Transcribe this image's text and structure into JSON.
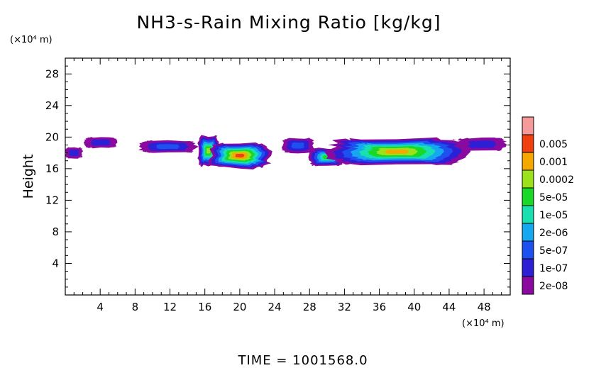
{
  "chart_data": {
    "type": "heatmap",
    "title": "NH3-s-Rain Mixing Ratio [kg/kg]",
    "ylabel": "Height",
    "y_unit_label": "(×10⁴ m)",
    "x_unit_label": "(×10⁴ m)",
    "time_label": "TIME  =  1001568.0",
    "xlim": [
      0,
      51
    ],
    "ylim": [
      0,
      30
    ],
    "x_ticks": [
      4,
      8,
      12,
      16,
      20,
      24,
      28,
      32,
      36,
      40,
      44,
      48
    ],
    "y_ticks": [
      4,
      8,
      12,
      16,
      20,
      24,
      28
    ],
    "x_tick_labels": [
      "4",
      "8",
      "12",
      "16",
      "20",
      "24",
      "28",
      "32",
      "36",
      "40",
      "44",
      "48"
    ],
    "y_tick_labels": [
      "4",
      "8",
      "12",
      "16",
      "20",
      "24",
      "28"
    ],
    "colorbar": {
      "levels": [
        "2e-08",
        "1e-07",
        "5e-07",
        "2e-06",
        "1e-05",
        "5e-05",
        "0.0002",
        "0.001",
        "0.005"
      ],
      "colors": [
        "#8a0aa0",
        "#2d1fd6",
        "#1e50f0",
        "#15a8f0",
        "#18e0b0",
        "#19d828",
        "#9be21a",
        "#f5a800",
        "#f04010",
        "#f59a9a"
      ]
    },
    "field_regions": [
      {
        "x": [
          0,
          2
        ],
        "y": [
          17.3,
          18.7
        ],
        "max_level": 1
      },
      {
        "x": [
          2.2,
          6
        ],
        "y": [
          18.6,
          20.0
        ],
        "max_level": 1
      },
      {
        "x": [
          8.5,
          15
        ],
        "y": [
          18.0,
          19.6
        ],
        "max_level": 2
      },
      {
        "x": [
          15.2,
          17.6
        ],
        "y": [
          16.3,
          20.2
        ],
        "max_level": 6
      },
      {
        "x": [
          16.5,
          23.5
        ],
        "y": [
          16.0,
          19.3
        ],
        "max_level": 8
      },
      {
        "x": [
          24.8,
          28.5
        ],
        "y": [
          18.0,
          19.9
        ],
        "max_level": 2
      },
      {
        "x": [
          28,
          32
        ],
        "y": [
          16.3,
          18.6
        ],
        "max_level": 5
      },
      {
        "x": [
          30,
          46
        ],
        "y": [
          16.4,
          19.9
        ],
        "max_level": 7
      },
      {
        "x": [
          45,
          50.5
        ],
        "y": [
          18.2,
          19.9
        ],
        "max_level": 1
      }
    ]
  }
}
